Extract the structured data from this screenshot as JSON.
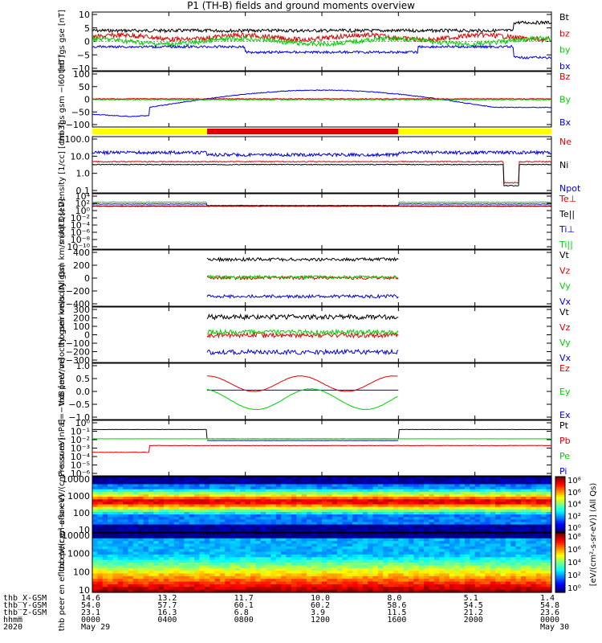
{
  "title": "P1 (TH-B) fields and ground moments overview",
  "colors": {
    "black": "#000000",
    "red": "#e00000",
    "green": "#00d000",
    "blue": "#0000e0",
    "yellow": "#ffff00"
  },
  "x_range": [
    0,
    24
  ],
  "x_ticks": [
    0,
    4,
    8,
    12,
    16,
    20,
    24
  ],
  "orbit": {
    "rows": [
      {
        "label": "thb_X-GSM",
        "values": [
          "14.6",
          "13.2",
          "11.7",
          "10.0",
          "8.0",
          "5.1",
          "1.4"
        ]
      },
      {
        "label": "thb_Y-GSM",
        "values": [
          "54.0",
          "57.7",
          "60.1",
          "60.2",
          "58.6",
          "54.5",
          "54.8"
        ]
      },
      {
        "label": "thb_Z-GSM",
        "values": [
          "23.1",
          "16.3",
          "6.8",
          "3.9",
          "11.5",
          "21.2",
          "23.6"
        ]
      },
      {
        "label": "hhmm",
        "values": [
          "0000",
          "0400",
          "0800",
          "1200",
          "1600",
          "2000",
          "0000"
        ]
      },
      {
        "label": "2020",
        "values": [
          "May 29",
          "",
          "",
          "",
          "",
          "",
          "May 30"
        ]
      }
    ]
  },
  "chart_data": [
    {
      "type": "line",
      "ylabel": "thb fgs gse [nT]",
      "ylim": [
        -10,
        10
      ],
      "yticks": [
        "10",
        "5",
        "0",
        "−5",
        "−10"
      ],
      "series": [
        {
          "name": "Bt",
          "color": "black"
        },
        {
          "name": "bz",
          "color": "red"
        },
        {
          "name": "by",
          "color": "green"
        },
        {
          "name": "bx",
          "color": "blue"
        }
      ]
    },
    {
      "type": "line",
      "ylabel": "thb fgs gsm −l60 [nT]",
      "ylim": [
        -125,
        125
      ],
      "yticks": [
        "100",
        "50",
        "0",
        "−50",
        "−100"
      ],
      "series": [
        {
          "name": "Bz",
          "color": "red"
        },
        {
          "name": "By",
          "color": "green"
        },
        {
          "name": "Bx",
          "color": "blue"
        }
      ]
    },
    {
      "type": "line",
      "ylabel": "Density [1/cc] [cm-3]",
      "ylim": [
        0.1,
        150
      ],
      "scale": "log",
      "yticks": [
        "100.0",
        "10.0",
        "1.0",
        "0.1"
      ],
      "series": [
        {
          "name": "Ne",
          "color": "red"
        },
        {
          "name": "Ni",
          "color": "black"
        },
        {
          "name": "Npot",
          "color": "blue"
        }
      ]
    },
    {
      "type": "line",
      "ylabel": "moqt3 [eV]",
      "scale": "log",
      "yticks": [
        "10⁴",
        "10²",
        "10⁰",
        "10⁻²",
        "10⁻⁴",
        "10⁻⁶",
        "10⁻⁸",
        "10⁻¹⁰"
      ],
      "series": [
        {
          "name": "Te⊥",
          "color": "red"
        },
        {
          "name": "Te||",
          "color": "black"
        },
        {
          "name": "Ti⊥",
          "color": "blue"
        },
        {
          "name": "Ti||",
          "color": "green"
        }
      ]
    },
    {
      "type": "line",
      "ylabel": "thb peir velocity gsm km/s (All Qs)",
      "ylim": [
        -400,
        400
      ],
      "yticks": [
        "400",
        "200",
        "0",
        "−200",
        "−400"
      ],
      "series": [
        {
          "name": "Vt",
          "color": "black",
          "values": [
            290
          ]
        },
        {
          "name": "Vz",
          "color": "red",
          "values": [
            5
          ]
        },
        {
          "name": "Vy",
          "color": "green",
          "values": [
            15
          ]
        },
        {
          "name": "Vx",
          "color": "blue",
          "values": [
            -285
          ]
        }
      ]
    },
    {
      "type": "line",
      "ylabel": "thb peer velocity gsm km/s (All Qs)",
      "ylim": [
        -300,
        300
      ],
      "yticks": [
        "300",
        "200",
        "100",
        "0",
        "−100",
        "−200",
        "−300"
      ],
      "series": [
        {
          "name": "Vt",
          "color": "black",
          "values": [
            210
          ]
        },
        {
          "name": "Vz",
          "color": "red",
          "values": [
            -5
          ]
        },
        {
          "name": "Vy",
          "color": "green",
          "values": [
            30
          ]
        },
        {
          "name": "Vx",
          "color": "blue",
          "values": [
            -205
          ]
        }
      ]
    },
    {
      "type": "line",
      "ylabel": "E=−VxB [mV/m]",
      "ylim": [
        -1.0,
        1.0
      ],
      "yticks": [
        "1.0",
        "0.5",
        "0.0",
        "−0.5",
        "−1.0"
      ],
      "series": [
        {
          "name": "Ez",
          "color": "red"
        },
        {
          "name": "Ey",
          "color": "green"
        },
        {
          "name": "Ex",
          "color": "blue"
        }
      ]
    },
    {
      "type": "line",
      "ylabel": "Pressure [nPa]",
      "scale": "log",
      "yticks": [
        "10⁰",
        "10⁻¹",
        "10⁻²",
        "10⁻³",
        "10⁻⁴",
        "10⁻⁵",
        "10⁻⁶"
      ],
      "series": [
        {
          "name": "Pt",
          "color": "black"
        },
        {
          "name": "Pb",
          "color": "red"
        },
        {
          "name": "Pe",
          "color": "green"
        },
        {
          "name": "Pi",
          "color": "blue"
        }
      ]
    },
    {
      "type": "heatmap",
      "ylabel": "thb peir en eflux eV/(cm²-s-sr-eV)",
      "scale": "log",
      "yticks": [
        "10000",
        "1000",
        "100",
        "10"
      ],
      "colorbar": {
        "label": "[eV/(cm²-s-sr-eV)] (All Qs)",
        "ticks": [
          "10⁸",
          "10⁶",
          "10⁴",
          "10²",
          "10⁰"
        ]
      }
    },
    {
      "type": "heatmap",
      "ylabel": "thb peer en eflux eV/(cm²-s-sr-eV)",
      "scale": "log",
      "yticks": [
        "10000",
        "1000",
        "100",
        "10"
      ],
      "colorbar": {
        "label": "[eV/(cm²-s-sr-eV)] (All Qs)",
        "ticks": [
          "10⁸",
          "10⁶",
          "10⁴",
          "10²",
          "10⁰"
        ]
      }
    }
  ]
}
